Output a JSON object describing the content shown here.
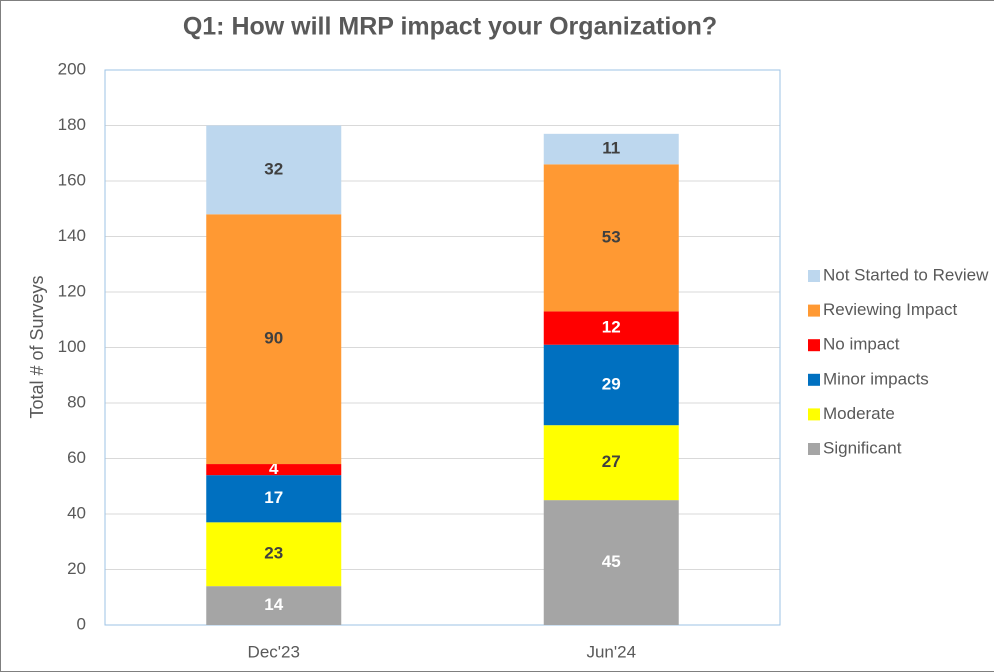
{
  "chart_data": {
    "type": "stacked_bar",
    "title": "Q1: How will MRP impact your Organization?",
    "y_label": "Total # of Surveys",
    "categories": [
      "Dec'23",
      "Jun'24"
    ],
    "series": [
      {
        "name": "Significant",
        "color": "#a5a5a5",
        "label_color": "#ffffff",
        "values": [
          14,
          45
        ]
      },
      {
        "name": "Moderate",
        "color": "#ffff00",
        "label_color": "#404040",
        "values": [
          23,
          27
        ]
      },
      {
        "name": "Minor impacts",
        "color": "#0070c0",
        "label_color": "#ffffff",
        "values": [
          17,
          29
        ]
      },
      {
        "name": "No impact",
        "color": "#ff0000",
        "label_color": "#ffffff",
        "values": [
          4,
          12
        ]
      },
      {
        "name": "Reviewing Impact",
        "color": "#ff9933",
        "label_color": "#404040",
        "values": [
          90,
          53
        ]
      },
      {
        "name": "Not Started to Review",
        "color": "#bdd7ee",
        "label_color": "#404040",
        "values": [
          32,
          11
        ]
      }
    ],
    "ylim": [
      0,
      200
    ],
    "yticks": [
      0,
      20,
      40,
      60,
      80,
      100,
      120,
      140,
      160,
      180,
      200
    ],
    "grid": true,
    "legend": "right"
  }
}
